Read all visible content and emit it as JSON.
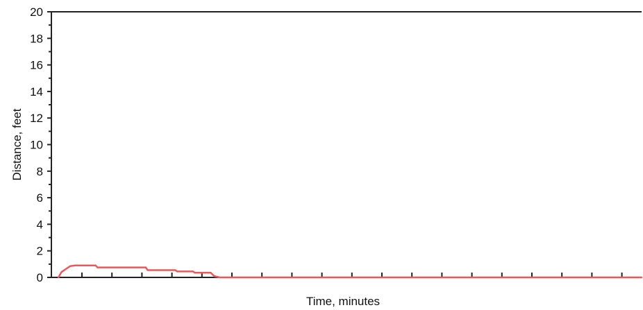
{
  "chart_data": {
    "type": "line",
    "title": "",
    "xlabel": "Time, minutes",
    "ylabel": "Distance, feet",
    "ylim": [
      0,
      20
    ],
    "xlim": [
      0,
      1
    ],
    "y_ticks": [
      "0",
      "2",
      "4",
      "6",
      "8",
      "10",
      "12",
      "14",
      "16",
      "18",
      "20"
    ],
    "x_tick_count": 19,
    "x_tick_labels_shown": false,
    "grid": false,
    "legend": "none",
    "series": [
      {
        "color": "#e8595c",
        "x": [
          0.012,
          0.017,
          0.025,
          0.032,
          0.04,
          0.075,
          0.078,
          0.16,
          0.163,
          0.21,
          0.213,
          0.24,
          0.243,
          0.27,
          0.276,
          0.285,
          1.0
        ],
        "y": [
          0.0,
          0.4,
          0.65,
          0.85,
          0.9,
          0.9,
          0.75,
          0.75,
          0.55,
          0.55,
          0.45,
          0.45,
          0.35,
          0.35,
          0.1,
          0.0,
          0.0
        ]
      }
    ]
  }
}
